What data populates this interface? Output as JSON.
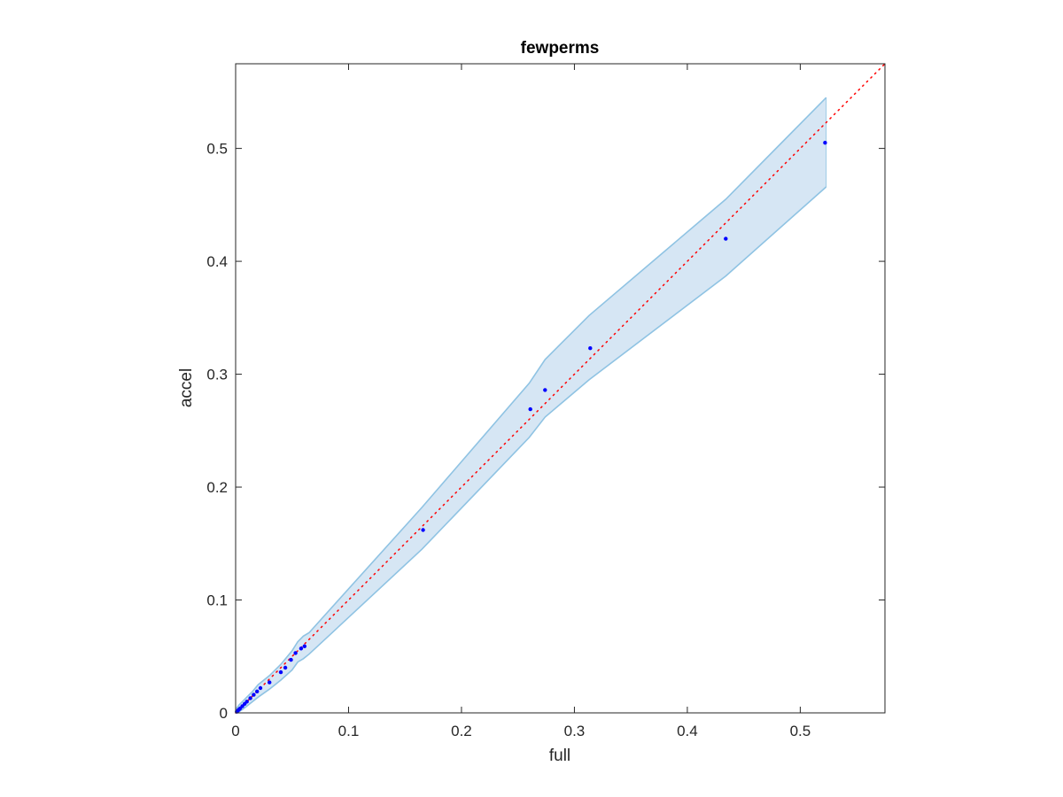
{
  "chart_data": {
    "type": "scatter",
    "title": "fewperms",
    "xlabel": "full",
    "ylabel": "accel",
    "xlim": [
      0,
      0.575
    ],
    "ylim": [
      0,
      0.575
    ],
    "xticks": [
      0,
      0.1,
      0.2,
      0.3,
      0.4,
      0.5
    ],
    "yticks": [
      0,
      0.1,
      0.2,
      0.3,
      0.4,
      0.5
    ],
    "xtick_labels": [
      "0",
      "0.1",
      "0.2",
      "0.3",
      "0.4",
      "0.5"
    ],
    "ytick_labels": [
      "0",
      "0.1",
      "0.2",
      "0.3",
      "0.4",
      "0.5"
    ],
    "grid": false,
    "legend": "none",
    "reference_line": {
      "style": "dotted",
      "color": "#ff0000",
      "from": [
        0,
        0
      ],
      "to": [
        0.575,
        0.575
      ]
    },
    "band": {
      "color": "#d6e6f4",
      "edge_color": "#8fc3e3",
      "x": [
        0,
        0.003,
        0.006,
        0.01,
        0.015,
        0.02,
        0.03,
        0.04,
        0.05,
        0.055,
        0.06,
        0.065,
        0.165,
        0.26,
        0.274,
        0.313,
        0.434,
        0.523
      ],
      "upper": [
        0.003,
        0.007,
        0.01,
        0.014,
        0.019,
        0.025,
        0.033,
        0.043,
        0.055,
        0.063,
        0.068,
        0.071,
        0.182,
        0.292,
        0.313,
        0.352,
        0.455,
        0.545
      ],
      "lower": [
        0,
        0.001,
        0.003,
        0.006,
        0.01,
        0.014,
        0.021,
        0.029,
        0.038,
        0.045,
        0.048,
        0.052,
        0.145,
        0.244,
        0.262,
        0.295,
        0.387,
        0.466
      ]
    },
    "series": [
      {
        "color": "#0000ff",
        "x": [
          0.001,
          0.002,
          0.003,
          0.004,
          0.006,
          0.008,
          0.01,
          0.013,
          0.016,
          0.019,
          0.022,
          0.03,
          0.04,
          0.044,
          0.049,
          0.053,
          0.058,
          0.061,
          0.166,
          0.261,
          0.274,
          0.314,
          0.434,
          0.522
        ],
        "y": [
          0.001,
          0.002,
          0.003,
          0.004,
          0.006,
          0.008,
          0.01,
          0.013,
          0.016,
          0.019,
          0.022,
          0.027,
          0.036,
          0.04,
          0.047,
          0.053,
          0.057,
          0.059,
          0.162,
          0.269,
          0.286,
          0.323,
          0.42,
          0.505
        ]
      }
    ]
  }
}
